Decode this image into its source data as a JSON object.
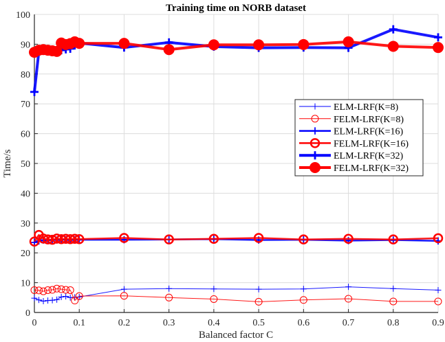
{
  "chart_data": {
    "type": "line",
    "title": "Training time on NORB dataset",
    "xlabel": "Balanced factor C",
    "ylabel": "Time/s",
    "xlim": [
      0,
      0.9
    ],
    "ylim": [
      0,
      100
    ],
    "grid": true,
    "legend_position": "right-center (inside)",
    "xticks": [
      "0",
      "0.1",
      "0.2",
      "0.3",
      "0.4",
      "0.5",
      "0.6",
      "0.7",
      "0.8",
      "0.9"
    ],
    "yticks": [
      "0",
      "10",
      "20",
      "30",
      "40",
      "50",
      "60",
      "70",
      "80",
      "90",
      "100"
    ],
    "x": [
      0,
      0.01,
      0.02,
      0.03,
      0.04,
      0.05,
      0.06,
      0.07,
      0.08,
      0.09,
      0.1,
      0.2,
      0.3,
      0.4,
      0.5,
      0.6,
      0.7,
      0.8,
      0.9
    ],
    "series": [
      {
        "name": "ELM-LRF(K=8)",
        "color": "#0000ff",
        "marker": "plus",
        "lineWidth": 1,
        "values": [
          4.8,
          4.2,
          3.8,
          4.0,
          4.1,
          4.3,
          5.2,
          5.4,
          5.0,
          5.1,
          5.2,
          7.8,
          8.0,
          7.9,
          7.8,
          7.9,
          8.6,
          8.0,
          7.5
        ]
      },
      {
        "name": "FELM-LRF(K=8)",
        "color": "#ff0000",
        "marker": "circle-open",
        "lineWidth": 1,
        "values": [
          7.5,
          7.4,
          7.1,
          7.5,
          7.6,
          8.0,
          7.8,
          7.6,
          7.5,
          4.0,
          5.5,
          5.6,
          5.0,
          4.5,
          3.6,
          4.2,
          4.6,
          3.7,
          3.7
        ]
      },
      {
        "name": "ELM-LRF(K=16)",
        "color": "#0000ff",
        "marker": "plus",
        "lineWidth": 2.5,
        "values": [
          23.5,
          24.0,
          24.3,
          24.2,
          24.4,
          24.3,
          24.5,
          24.4,
          24.3,
          24.4,
          24.4,
          24.4,
          24.5,
          24.6,
          24.3,
          24.4,
          24.1,
          24.3,
          24.0
        ]
      },
      {
        "name": "FELM-LRF(K=16)",
        "color": "#ff0000",
        "marker": "circle-open",
        "lineWidth": 2.5,
        "values": [
          23.8,
          26.0,
          24.8,
          24.5,
          24.4,
          24.8,
          24.6,
          24.7,
          24.6,
          24.7,
          24.6,
          25.0,
          24.5,
          24.7,
          25.0,
          24.5,
          24.7,
          24.5,
          24.9
        ]
      },
      {
        "name": "ELM-LRF(K=32)",
        "color": "#0000ff",
        "marker": "plus",
        "lineWidth": 4,
        "values": [
          74.0,
          87.6,
          87.8,
          87.7,
          87.6,
          87.4,
          88.0,
          88.3,
          88.5,
          89.6,
          90.4,
          88.9,
          90.6,
          89.2,
          88.8,
          88.9,
          88.8,
          95.0,
          92.3
        ]
      },
      {
        "name": "FELM-LRF(K=32)",
        "color": "#ff0000",
        "marker": "circle-filled",
        "lineWidth": 4,
        "values": [
          87.3,
          88.0,
          88.2,
          88.0,
          87.8,
          87.6,
          90.4,
          89.9,
          90.2,
          90.8,
          90.3,
          90.3,
          88.2,
          89.8,
          89.8,
          89.9,
          90.8,
          89.3,
          88.9
        ]
      }
    ]
  }
}
